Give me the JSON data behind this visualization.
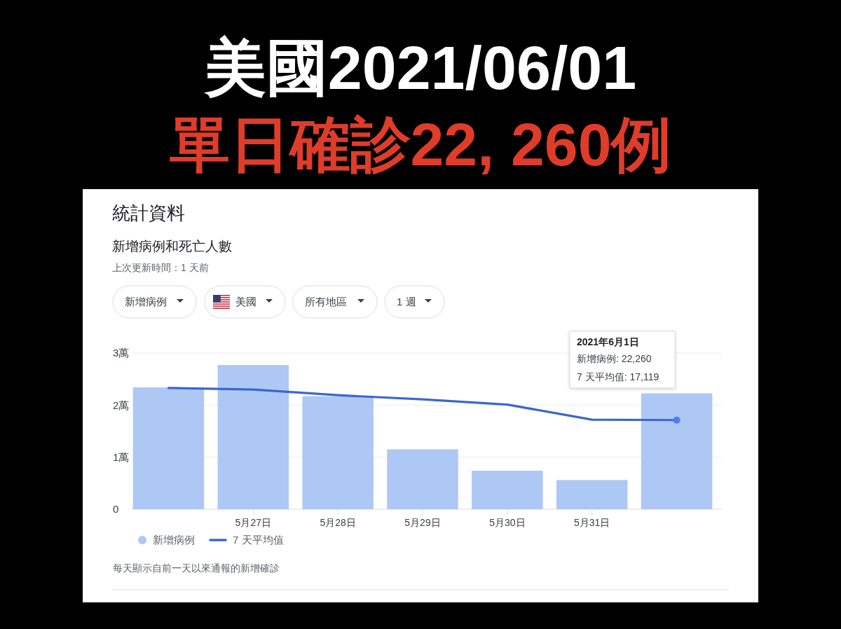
{
  "chart_data": {
    "type": "bar",
    "title": "美國2021/06/01",
    "subtitle": "單日確診22, 260例",
    "annotations": [
      "統計資料",
      "新增病例和死亡人數",
      "上次更新時間：1 天前",
      "新增病例",
      "美國",
      "所有地區",
      "1 週",
      "2021年6月1日",
      "新增病例: 22,260",
      "7 天平均值: 17,119",
      "每天顯示自前一天以來通報的新增確診"
    ],
    "categories": [
      null,
      "5月27日",
      "5月28日",
      "5月29日",
      "5月30日",
      "5月31日",
      null
    ],
    "series": [
      {
        "name": "新增病例",
        "color": "#aec8f5",
        "values": [
          2.34,
          2.77,
          2.17,
          1.15,
          0.74,
          0.56,
          2.226
        ]
      },
      {
        "name": "7 天平均值",
        "type": "line",
        "color": "#3a68cc",
        "values": [
          2.33,
          2.3,
          2.19,
          2.11,
          2.01,
          1.72,
          1.7119
        ]
      }
    ],
    "ylim": [
      0,
      3
    ],
    "yticks": [
      0,
      {
        "value": 1,
        "label": "1萬"
      },
      {
        "value": 2,
        "label": "2萬"
      },
      {
        "value": 3,
        "label": "3萬"
      }
    ],
    "grid": "y",
    "legend": "bottom left"
  }
}
